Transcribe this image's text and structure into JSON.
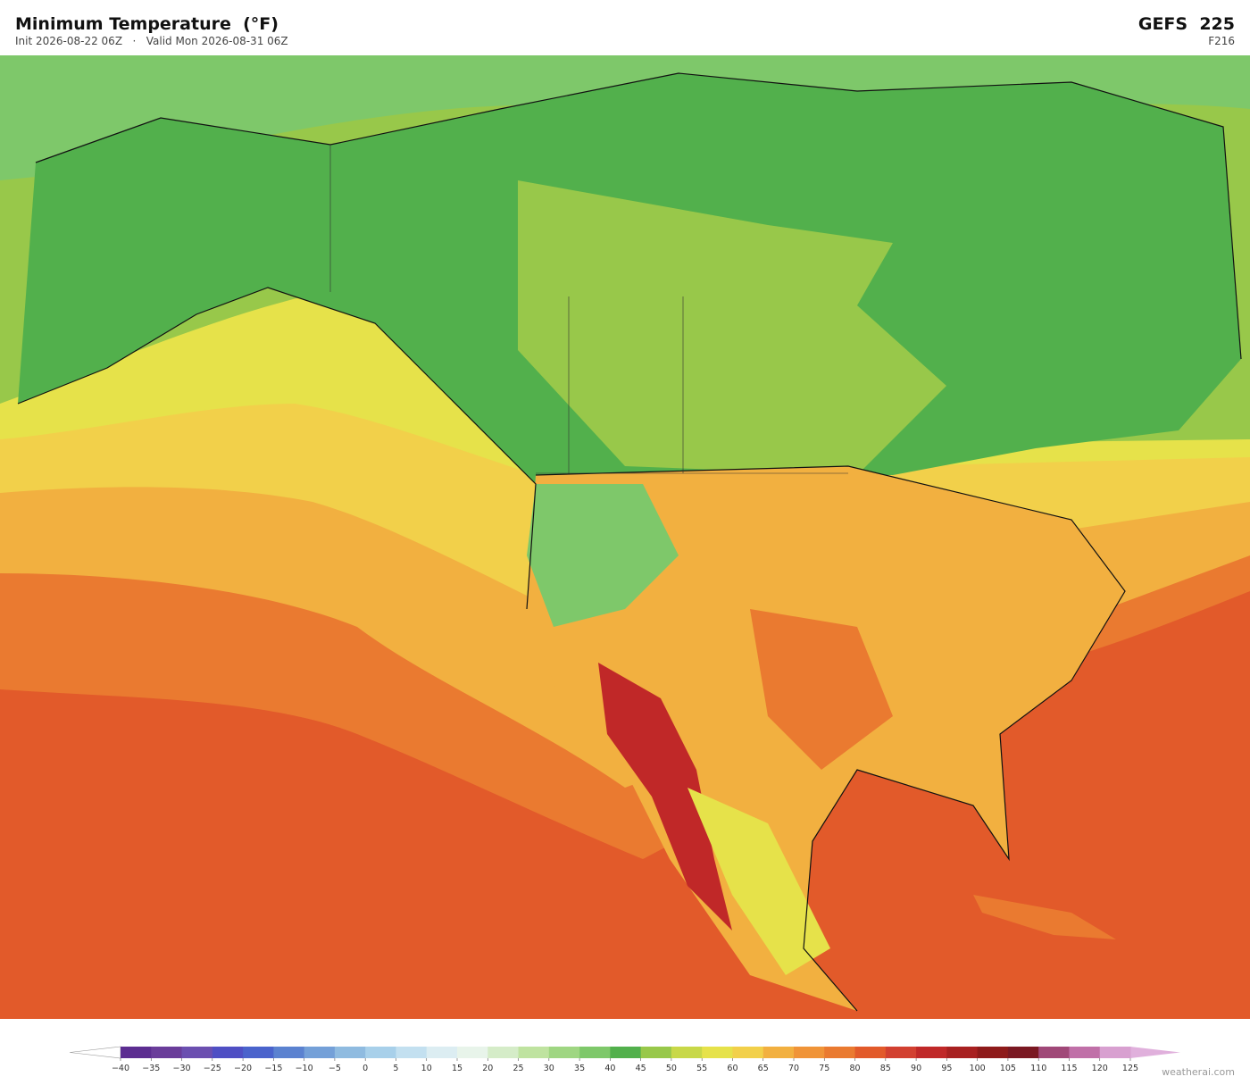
{
  "header": {
    "title": "Minimum Temperature  (°F)",
    "subtitle": "Init 2026-08-22 06Z   ·   Valid Mon 2026-08-31 06Z",
    "model": "GEFS  225",
    "forecast_hour": "F216"
  },
  "colorbar": {
    "ticks": [
      "−40",
      "−35",
      "−30",
      "−25",
      "−20",
      "−15",
      "−10",
      "−5",
      "0",
      "5",
      "10",
      "15",
      "20",
      "25",
      "30",
      "35",
      "40",
      "45",
      "50",
      "55",
      "60",
      "65",
      "70",
      "75",
      "80",
      "85",
      "90",
      "95",
      "100",
      "105",
      "110",
      "115",
      "120",
      "125"
    ],
    "colors": [
      "#5c2d91",
      "#6a3d9a",
      "#6b4fb0",
      "#4f4fc4",
      "#4a63cc",
      "#5b82d0",
      "#74a0d8",
      "#8fbbe0",
      "#a8d0ea",
      "#c3e0f0",
      "#dcedf2",
      "#e8f4ea",
      "#d5ecc8",
      "#bfe3a0",
      "#9fd682",
      "#7ec86a",
      "#52b04c",
      "#98c84a",
      "#c8d848",
      "#e6e24a",
      "#f2d04a",
      "#f2b040",
      "#f09438",
      "#ea7a30",
      "#e25a2a",
      "#d24030",
      "#c02828",
      "#a82020",
      "#8e1a1a",
      "#7a1822",
      "#a04878",
      "#c070a8",
      "#d8a0d0"
    ],
    "under_color": "#ffffff",
    "over_color": "#e0b0dc"
  },
  "watermark": "weatherai.com"
}
